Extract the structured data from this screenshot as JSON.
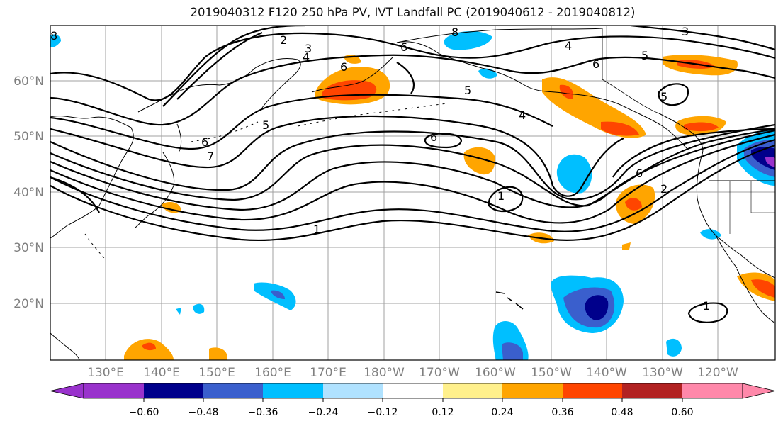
{
  "title": "2019040312 F120 250 hPa PV, IVT Landfall PC (2019040612 - 2019040812)",
  "lat_labels": [
    "60°N",
    "50°N",
    "40°N",
    "30°N",
    "20°N"
  ],
  "lon_labels": [
    "130°E",
    "140°E",
    "150°E",
    "160°E",
    "170°E",
    "180°W",
    "170°W",
    "160°W",
    "150°W",
    "140°W",
    "130°W",
    "120°W"
  ],
  "colorbar": {
    "ticks": [
      "−0.60",
      "−0.48",
      "−0.36",
      "−0.24",
      "−0.12",
      "0.12",
      "0.24",
      "0.36",
      "0.48",
      "0.60"
    ],
    "colors": [
      "#9932cc",
      "#00008b",
      "#3a5fcd",
      "#00bfff",
      "#b0e2ff",
      "#ffffff",
      "#fff08c",
      "#ffa500",
      "#ff4500",
      "#b22222",
      "#ff88aa"
    ]
  },
  "contour_labels": [
    "2",
    "3",
    "4",
    "5",
    "6",
    "7",
    "6",
    "6",
    "5",
    "4",
    "6",
    "5",
    "4",
    "6",
    "1",
    "1",
    "6",
    "2",
    "1",
    "3",
    "8",
    "8",
    "5"
  ],
  "colors": {
    "grid": "#a0a0a0",
    "coast": "#000000"
  }
}
